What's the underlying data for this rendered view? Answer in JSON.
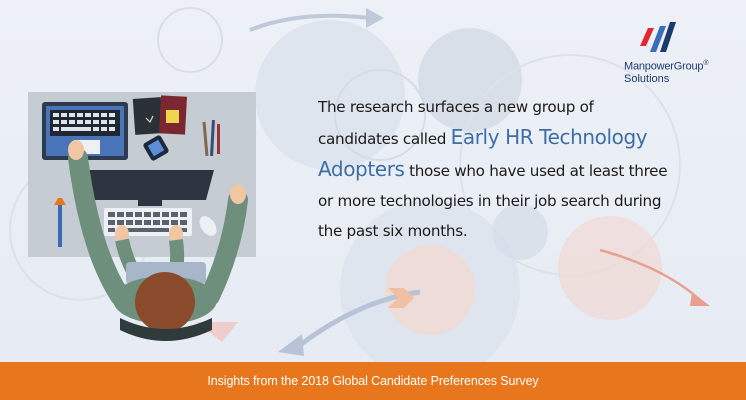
{
  "logo": {
    "name": "ManpowerGroup",
    "trademark": "®",
    "sub": "Solutions"
  },
  "message": {
    "part1": "The research surfaces a new group of candidates called ",
    "highlight": "Early HR Technology Adopters",
    "part2": " those who have used at least three or more technologies in their job search during the past six months."
  },
  "footer": {
    "text": "Insights from the 2018 Global Candidate Preferences Survey"
  },
  "colors": {
    "highlight": "#3e6ea6",
    "footer": "#e8761c",
    "logo_red": "#e1262d",
    "logo_blue": "#1c3a6b"
  }
}
